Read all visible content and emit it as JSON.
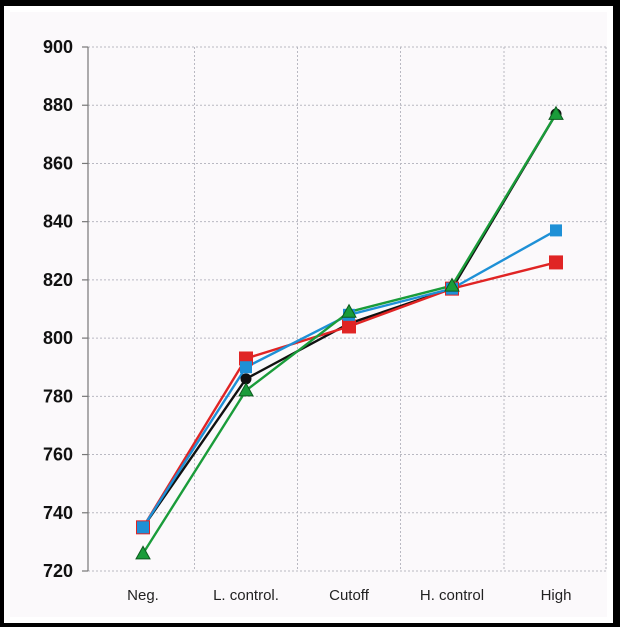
{
  "chart_data": {
    "type": "line",
    "categories": [
      "Neg.",
      "L. control.",
      "Cutoff",
      "H. control",
      "High"
    ],
    "ylim": [
      720,
      900
    ],
    "yticks": [
      720,
      740,
      760,
      780,
      800,
      820,
      840,
      860,
      880,
      900
    ],
    "grid": true,
    "legend": "none",
    "series": [
      {
        "color": "#111111",
        "marker": "circle",
        "values": [
          735,
          786,
          805,
          817,
          877
        ]
      },
      {
        "color": "#e02424",
        "marker": "square",
        "values": [
          735,
          793,
          804,
          817,
          826
        ]
      },
      {
        "color": "#1e90d6",
        "marker": "square",
        "values": [
          735,
          790,
          808,
          817,
          837
        ]
      },
      {
        "color": "#1a9c3a",
        "marker": "triangle",
        "values": [
          726,
          782,
          809,
          818,
          877
        ]
      }
    ]
  }
}
